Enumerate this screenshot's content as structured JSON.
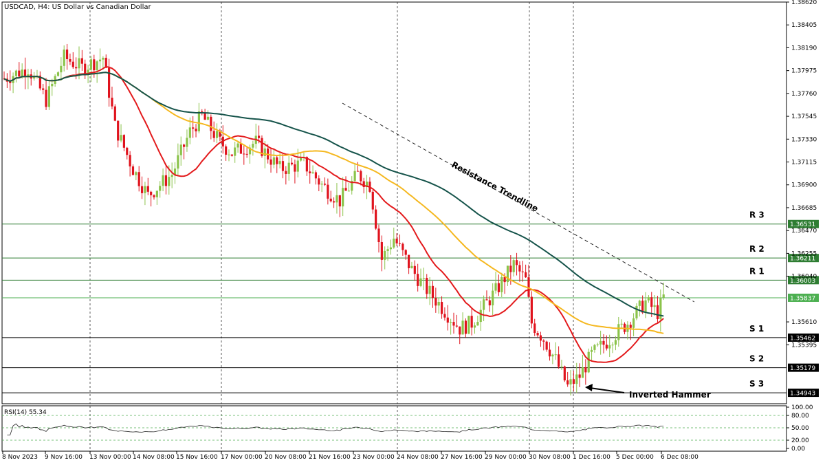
{
  "chart_data": {
    "type": "candlestick",
    "title": "USDCAD, H4:  US Dollar vs Canadian Dollar",
    "y_axis": {
      "ticks": [
        "1.38620",
        "1.38405",
        "1.38190",
        "1.37975",
        "1.37760",
        "1.37545",
        "1.37330",
        "1.37115",
        "1.36900",
        "1.36685",
        "1.36470",
        "1.36255",
        "1.36040",
        "1.35610",
        "1.35395"
      ],
      "ylim": [
        1.3484,
        1.3862
      ]
    },
    "x_axis": {
      "ticks": [
        "8 Nov 2023",
        "9 Nov 16:00",
        "13 Nov 00:00",
        "14 Nov 08:00",
        "15 Nov 16:00",
        "17 Nov 00:00",
        "20 Nov 08:00",
        "21 Nov 16:00",
        "23 Nov 00:00",
        "24 Nov 08:00",
        "27 Nov 16:00",
        "29 Nov 00:00",
        "30 Nov 08:00",
        "1 Dec 16:00",
        "5 Dec 00:00",
        "6 Dec 08:00"
      ]
    },
    "levels": [
      {
        "name": "R 3",
        "value": 1.36531,
        "label": "1.36531",
        "color": "#2e7d32"
      },
      {
        "name": "R 2",
        "value": 1.36211,
        "label": "1.36211",
        "color": "#2e7d32"
      },
      {
        "name": "R 1",
        "value": 1.36003,
        "label": "1.36003",
        "color": "#2e7d32"
      },
      {
        "name": "",
        "value": 1.35837,
        "label": "1.35837",
        "color": "#4caf50"
      },
      {
        "name": "S 1",
        "value": 1.35462,
        "label": "1.35462",
        "color": "#000000"
      },
      {
        "name": "S 2",
        "value": 1.35179,
        "label": "1.35179",
        "color": "#000000"
      },
      {
        "name": "S 3",
        "value": 1.34943,
        "label": "1.34943",
        "color": "#000000"
      }
    ],
    "annotations": {
      "trendline_label": "Resistance Trendline",
      "pattern_label": "Inverted Hammer"
    },
    "colors": {
      "bull": "#8bc34a",
      "bear": "#e0131d",
      "ma_fast": "#e31a1c",
      "ma_mid": "#f5b820",
      "ma_slow": "#15534a"
    },
    "rsi": {
      "label": "RSI(14) 55.34",
      "ticks": [
        "100.00",
        "80.00",
        "50.00",
        "20.00",
        "0.00"
      ],
      "ylim": [
        0,
        100
      ],
      "levels": [
        80,
        50,
        20
      ]
    }
  }
}
